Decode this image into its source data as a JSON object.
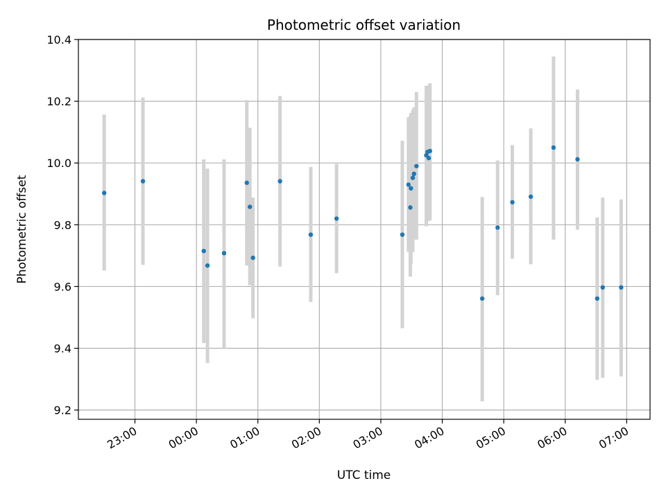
{
  "chart_data": {
    "type": "scatter",
    "title": "Photometric offset variation",
    "xlabel": "UTC time",
    "ylabel": "Photometric offset",
    "x_unit": "hours relative to 00:00 UTC (negative = previous day)",
    "xlim": [
      -1.92,
      7.38
    ],
    "ylim": [
      9.17,
      10.4
    ],
    "x_ticks": [
      {
        "value": -1,
        "label": "23:00"
      },
      {
        "value": 0,
        "label": "00:00"
      },
      {
        "value": 1,
        "label": "01:00"
      },
      {
        "value": 2,
        "label": "02:00"
      },
      {
        "value": 3,
        "label": "03:00"
      },
      {
        "value": 4,
        "label": "04:00"
      },
      {
        "value": 5,
        "label": "05:00"
      },
      {
        "value": 6,
        "label": "06:00"
      },
      {
        "value": 7,
        "label": "07:00"
      }
    ],
    "y_ticks": [
      {
        "value": 9.2,
        "label": "9.2"
      },
      {
        "value": 9.4,
        "label": "9.4"
      },
      {
        "value": 9.6,
        "label": "9.6"
      },
      {
        "value": 9.8,
        "label": "9.8"
      },
      {
        "value": 10.0,
        "label": "10.0"
      },
      {
        "value": 10.2,
        "label": "10.2"
      },
      {
        "value": 10.4,
        "label": "10.4"
      }
    ],
    "grid": true,
    "point_color": "#1f77b4",
    "errorbar_color": "#d3d3d3",
    "points": [
      {
        "x": -1.5,
        "y": 9.903,
        "lo": 9.652,
        "hi": 10.157
      },
      {
        "x": -0.87,
        "y": 9.941,
        "lo": 9.67,
        "hi": 10.212
      },
      {
        "x": 0.12,
        "y": 9.715,
        "lo": 9.417,
        "hi": 10.012
      },
      {
        "x": 0.18,
        "y": 9.668,
        "lo": 9.352,
        "hi": 9.982
      },
      {
        "x": 0.45,
        "y": 9.708,
        "lo": 9.4,
        "hi": 10.012
      },
      {
        "x": 0.82,
        "y": 9.936,
        "lo": 9.668,
        "hi": 10.204
      },
      {
        "x": 0.87,
        "y": 9.858,
        "lo": 9.604,
        "hi": 10.114
      },
      {
        "x": 0.92,
        "y": 9.693,
        "lo": 9.497,
        "hi": 9.888
      },
      {
        "x": 1.36,
        "y": 9.941,
        "lo": 9.665,
        "hi": 10.217
      },
      {
        "x": 1.86,
        "y": 9.768,
        "lo": 9.55,
        "hi": 9.987
      },
      {
        "x": 2.28,
        "y": 9.82,
        "lo": 9.643,
        "hi": 9.997
      },
      {
        "x": 3.35,
        "y": 9.768,
        "lo": 9.465,
        "hi": 10.072
      },
      {
        "x": 3.45,
        "y": 9.93,
        "lo": 9.712,
        "hi": 10.148
      },
      {
        "x": 3.48,
        "y": 9.856,
        "lo": 9.632,
        "hi": 10.152
      },
      {
        "x": 3.49,
        "y": 9.918,
        "lo": 9.672,
        "hi": 10.162
      },
      {
        "x": 3.52,
        "y": 9.952,
        "lo": 9.712,
        "hi": 10.172
      },
      {
        "x": 3.54,
        "y": 9.965,
        "lo": 9.752,
        "hi": 10.18
      },
      {
        "x": 3.58,
        "y": 9.99,
        "lo": 9.752,
        "hi": 10.23
      },
      {
        "x": 3.74,
        "y": 10.025,
        "lo": 9.795,
        "hi": 10.25
      },
      {
        "x": 3.76,
        "y": 10.036,
        "lo": 9.812,
        "hi": 10.24
      },
      {
        "x": 3.78,
        "y": 10.016,
        "lo": 9.812,
        "hi": 10.252
      },
      {
        "x": 3.8,
        "y": 10.039,
        "lo": 9.815,
        "hi": 10.258
      },
      {
        "x": 4.65,
        "y": 9.561,
        "lo": 9.228,
        "hi": 9.89
      },
      {
        "x": 4.9,
        "y": 9.791,
        "lo": 9.572,
        "hi": 10.008
      },
      {
        "x": 5.14,
        "y": 9.873,
        "lo": 9.69,
        "hi": 10.058
      },
      {
        "x": 5.44,
        "y": 9.891,
        "lo": 9.672,
        "hi": 10.112
      },
      {
        "x": 5.81,
        "y": 10.05,
        "lo": 9.752,
        "hi": 10.345
      },
      {
        "x": 6.2,
        "y": 10.012,
        "lo": 9.784,
        "hi": 10.238
      },
      {
        "x": 6.52,
        "y": 9.561,
        "lo": 9.298,
        "hi": 9.824
      },
      {
        "x": 6.61,
        "y": 9.597,
        "lo": 9.304,
        "hi": 9.888
      },
      {
        "x": 6.91,
        "y": 9.597,
        "lo": 9.309,
        "hi": 9.882
      }
    ]
  }
}
